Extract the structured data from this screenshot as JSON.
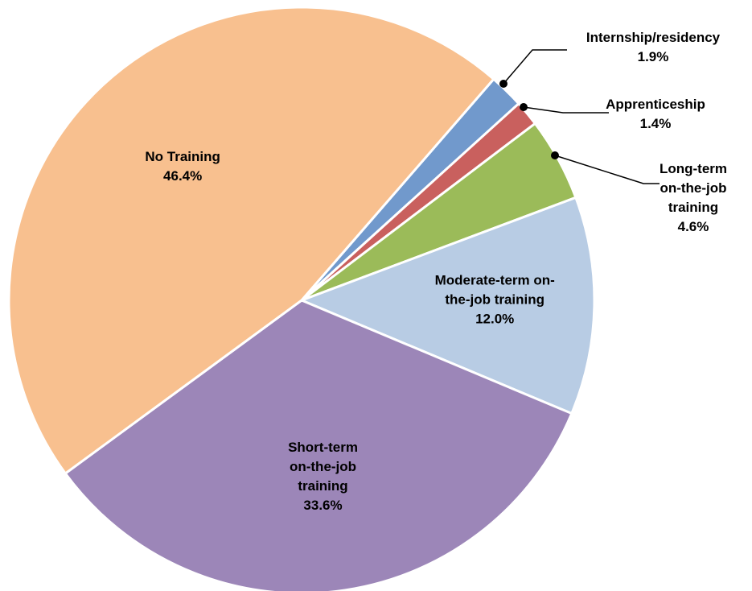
{
  "chart_data": {
    "type": "pie",
    "categories": [
      "Internship/residency",
      "Apprenticeship",
      "Long-term on-the-job training",
      "Moderate-term on-the-job training",
      "Short-term on-the-job training",
      "No Training"
    ],
    "values": [
      1.9,
      1.4,
      4.6,
      12.0,
      33.6,
      46.4
    ],
    "value_labels": [
      "1.9%",
      "1.4%",
      "4.6%",
      "12.0%",
      "33.6%",
      "46.4%"
    ],
    "colors": [
      "#7199cc",
      "#c9605e",
      "#9bbb59",
      "#b8cce4",
      "#9c86b8",
      "#f8c08f"
    ]
  }
}
